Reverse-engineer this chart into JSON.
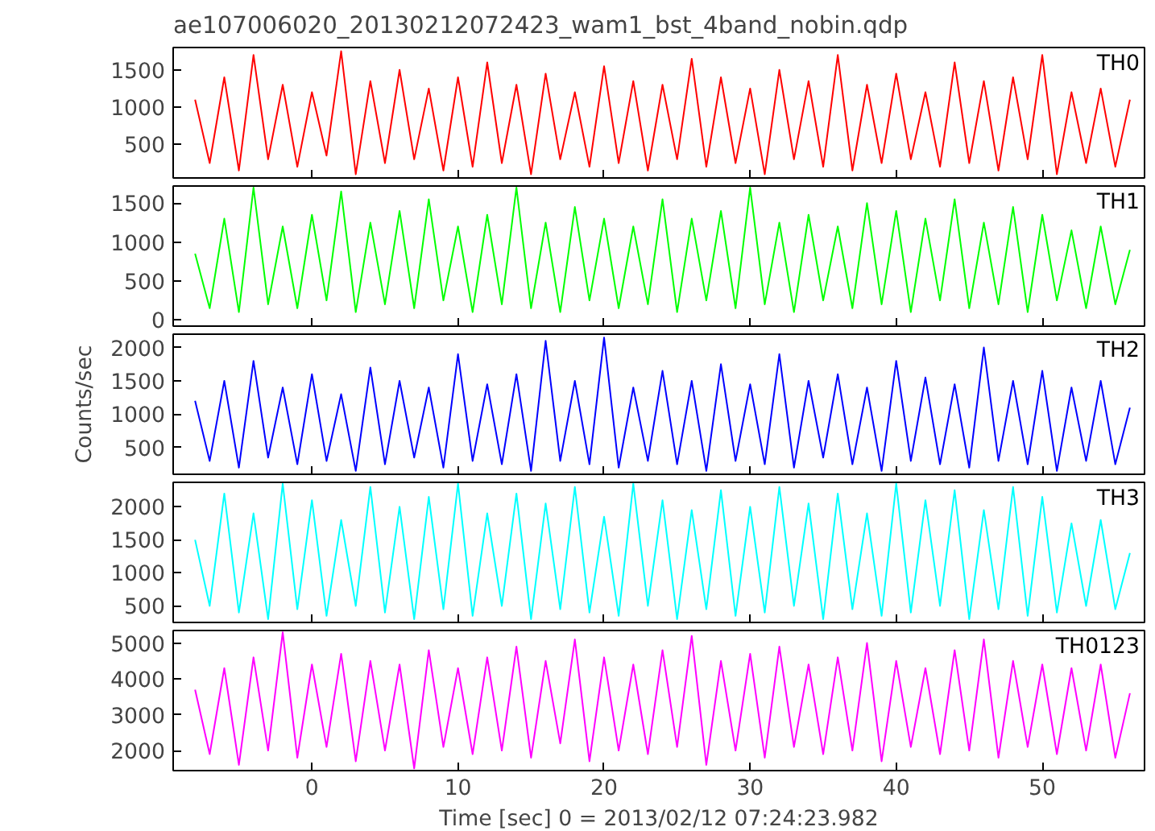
{
  "chart_data": [
    {
      "type": "line",
      "title": "ae107006020_20130212072423_wam1_bst_4band_nobin.qdp",
      "tick_labels": "y",
      "xlim": [
        -9.5,
        57
      ],
      "xticks": [
        0,
        10,
        20,
        30,
        40,
        50
      ],
      "ylim": [
        50,
        1800
      ],
      "yticks": [
        500,
        1000,
        1500
      ],
      "x": [
        -8,
        -7,
        -6,
        -5,
        -4,
        -3,
        -2,
        -1,
        0,
        1,
        2,
        3,
        4,
        5,
        6,
        7,
        8,
        9,
        10,
        11,
        12,
        13,
        14,
        15,
        16,
        17,
        18,
        19,
        20,
        21,
        22,
        23,
        24,
        25,
        26,
        27,
        28,
        29,
        30,
        31,
        32,
        33,
        34,
        35,
        36,
        37,
        38,
        39,
        40,
        41,
        42,
        43,
        44,
        45,
        46,
        47,
        48,
        49,
        50,
        51,
        52,
        53,
        54,
        55,
        56
      ],
      "series": [
        {
          "name": "TH0",
          "color": "#ff0000",
          "values": [
            1100,
            250,
            1400,
            150,
            1700,
            300,
            1300,
            200,
            1200,
            350,
            1750,
            100,
            1350,
            250,
            1500,
            300,
            1250,
            150,
            1400,
            200,
            1600,
            250,
            1300,
            100,
            1450,
            300,
            1200,
            200,
            1550,
            250,
            1350,
            150,
            1300,
            300,
            1650,
            200,
            1400,
            250,
            1250,
            100,
            1500,
            300,
            1350,
            200,
            1700,
            150,
            1300,
            250,
            1450,
            300,
            1200,
            200,
            1600,
            250,
            1350,
            150,
            1400,
            300,
            1700,
            100,
            1200,
            250,
            1250,
            200,
            1100
          ]
        }
      ]
    },
    {
      "type": "line",
      "tick_labels": "y",
      "xlim": [
        -9.5,
        57
      ],
      "xticks": [
        0,
        10,
        20,
        30,
        40,
        50
      ],
      "ylim": [
        -80,
        1720
      ],
      "yticks": [
        0,
        500,
        1000,
        1500
      ],
      "x": [
        -8,
        -7,
        -6,
        -5,
        -4,
        -3,
        -2,
        -1,
        0,
        1,
        2,
        3,
        4,
        5,
        6,
        7,
        8,
        9,
        10,
        11,
        12,
        13,
        14,
        15,
        16,
        17,
        18,
        19,
        20,
        21,
        22,
        23,
        24,
        25,
        26,
        27,
        28,
        29,
        30,
        31,
        32,
        33,
        34,
        35,
        36,
        37,
        38,
        39,
        40,
        41,
        42,
        43,
        44,
        45,
        46,
        47,
        48,
        49,
        50,
        51,
        52,
        53,
        54,
        55,
        56
      ],
      "series": [
        {
          "name": "TH1",
          "color": "#00ff00",
          "values": [
            850,
            150,
            1300,
            100,
            1700,
            200,
            1200,
            150,
            1350,
            250,
            1650,
            100,
            1250,
            200,
            1400,
            150,
            1550,
            250,
            1200,
            100,
            1350,
            200,
            1700,
            150,
            1250,
            100,
            1450,
            250,
            1300,
            150,
            1200,
            200,
            1550,
            100,
            1300,
            250,
            1400,
            150,
            1700,
            200,
            1250,
            100,
            1350,
            250,
            1200,
            150,
            1500,
            200,
            1400,
            100,
            1300,
            250,
            1550,
            150,
            1250,
            200,
            1450,
            100,
            1350,
            250,
            1150,
            150,
            1200,
            200,
            900
          ]
        }
      ]
    },
    {
      "type": "line",
      "ylabel": "Counts/sec",
      "tick_labels": "y",
      "xlim": [
        -9.5,
        57
      ],
      "xticks": [
        0,
        10,
        20,
        30,
        40,
        50
      ],
      "ylim": [
        100,
        2200
      ],
      "yticks": [
        500,
        1000,
        1500,
        2000
      ],
      "x": [
        -8,
        -7,
        -6,
        -5,
        -4,
        -3,
        -2,
        -1,
        0,
        1,
        2,
        3,
        4,
        5,
        6,
        7,
        8,
        9,
        10,
        11,
        12,
        13,
        14,
        15,
        16,
        17,
        18,
        19,
        20,
        21,
        22,
        23,
        24,
        25,
        26,
        27,
        28,
        29,
        30,
        31,
        32,
        33,
        34,
        35,
        36,
        37,
        38,
        39,
        40,
        41,
        42,
        43,
        44,
        45,
        46,
        47,
        48,
        49,
        50,
        51,
        52,
        53,
        54,
        55,
        56
      ],
      "series": [
        {
          "name": "TH2",
          "color": "#0000ff",
          "values": [
            1200,
            300,
            1500,
            200,
            1800,
            350,
            1400,
            250,
            1600,
            300,
            1300,
            150,
            1700,
            250,
            1500,
            350,
            1400,
            200,
            1900,
            300,
            1450,
            250,
            1600,
            150,
            2100,
            300,
            1500,
            250,
            2150,
            200,
            1400,
            300,
            1650,
            250,
            1500,
            150,
            1750,
            300,
            1450,
            250,
            1900,
            200,
            1500,
            350,
            1600,
            250,
            1400,
            150,
            1800,
            300,
            1550,
            250,
            1450,
            200,
            2000,
            300,
            1500,
            250,
            1650,
            150,
            1400,
            300,
            1500,
            250,
            1100
          ]
        }
      ]
    },
    {
      "type": "line",
      "tick_labels": "y",
      "xlim": [
        -9.5,
        57
      ],
      "xticks": [
        0,
        10,
        20,
        30,
        40,
        50
      ],
      "ylim": [
        250,
        2370
      ],
      "yticks": [
        500,
        1000,
        1500,
        2000
      ],
      "x": [
        -8,
        -7,
        -6,
        -5,
        -4,
        -3,
        -2,
        -1,
        0,
        1,
        2,
        3,
        4,
        5,
        6,
        7,
        8,
        9,
        10,
        11,
        12,
        13,
        14,
        15,
        16,
        17,
        18,
        19,
        20,
        21,
        22,
        23,
        24,
        25,
        26,
        27,
        28,
        29,
        30,
        31,
        32,
        33,
        34,
        35,
        36,
        37,
        38,
        39,
        40,
        41,
        42,
        43,
        44,
        45,
        46,
        47,
        48,
        49,
        50,
        51,
        52,
        53,
        54,
        55,
        56
      ],
      "series": [
        {
          "name": "TH3",
          "color": "#00ffff",
          "values": [
            1500,
            500,
            2200,
            400,
            1900,
            300,
            2350,
            450,
            2100,
            350,
            1800,
            500,
            2300,
            400,
            2000,
            300,
            2150,
            450,
            2350,
            350,
            1900,
            500,
            2200,
            300,
            2050,
            450,
            2300,
            400,
            1850,
            350,
            2350,
            500,
            2100,
            300,
            1950,
            450,
            2250,
            350,
            2000,
            400,
            2300,
            500,
            2050,
            300,
            2200,
            450,
            1900,
            350,
            2350,
            400,
            2100,
            500,
            2250,
            300,
            1950,
            450,
            2300,
            350,
            2150,
            400,
            1750,
            500,
            1800,
            450,
            1300
          ]
        }
      ]
    },
    {
      "type": "line",
      "xlabel": "Time [sec] 0 = 2013/02/12 07:24:23.982",
      "xlim": [
        -9.5,
        57
      ],
      "xticks": [
        0,
        10,
        20,
        30,
        40,
        50
      ],
      "ylim": [
        1440,
        5350
      ],
      "yticks": [
        2000,
        3000,
        4000,
        5000
      ],
      "x": [
        -8,
        -7,
        -6,
        -5,
        -4,
        -3,
        -2,
        -1,
        0,
        1,
        2,
        3,
        4,
        5,
        6,
        7,
        8,
        9,
        10,
        11,
        12,
        13,
        14,
        15,
        16,
        17,
        18,
        19,
        20,
        21,
        22,
        23,
        24,
        25,
        26,
        27,
        28,
        29,
        30,
        31,
        32,
        33,
        34,
        35,
        36,
        37,
        38,
        39,
        40,
        41,
        42,
        43,
        44,
        45,
        46,
        47,
        48,
        49,
        50,
        51,
        52,
        53,
        54,
        55,
        56
      ],
      "series": [
        {
          "name": "TH0123",
          "color": "#ff00ff",
          "values": [
            3700,
            1900,
            4300,
            1600,
            4600,
            2000,
            5300,
            1800,
            4400,
            2100,
            4700,
            1700,
            4500,
            2000,
            4400,
            1500,
            4800,
            2100,
            4300,
            1900,
            4600,
            2000,
            4900,
            1800,
            4500,
            2200,
            5100,
            1700,
            4600,
            2000,
            4400,
            1900,
            4800,
            2100,
            5200,
            1600,
            4500,
            2000,
            4700,
            1800,
            4900,
            2100,
            4400,
            1900,
            4600,
            2000,
            5000,
            1700,
            4500,
            2100,
            4300,
            1900,
            4800,
            2000,
            5100,
            1800,
            4500,
            2100,
            4400,
            1900,
            4300,
            2000,
            4400,
            1800,
            3600
          ]
        }
      ]
    }
  ]
}
